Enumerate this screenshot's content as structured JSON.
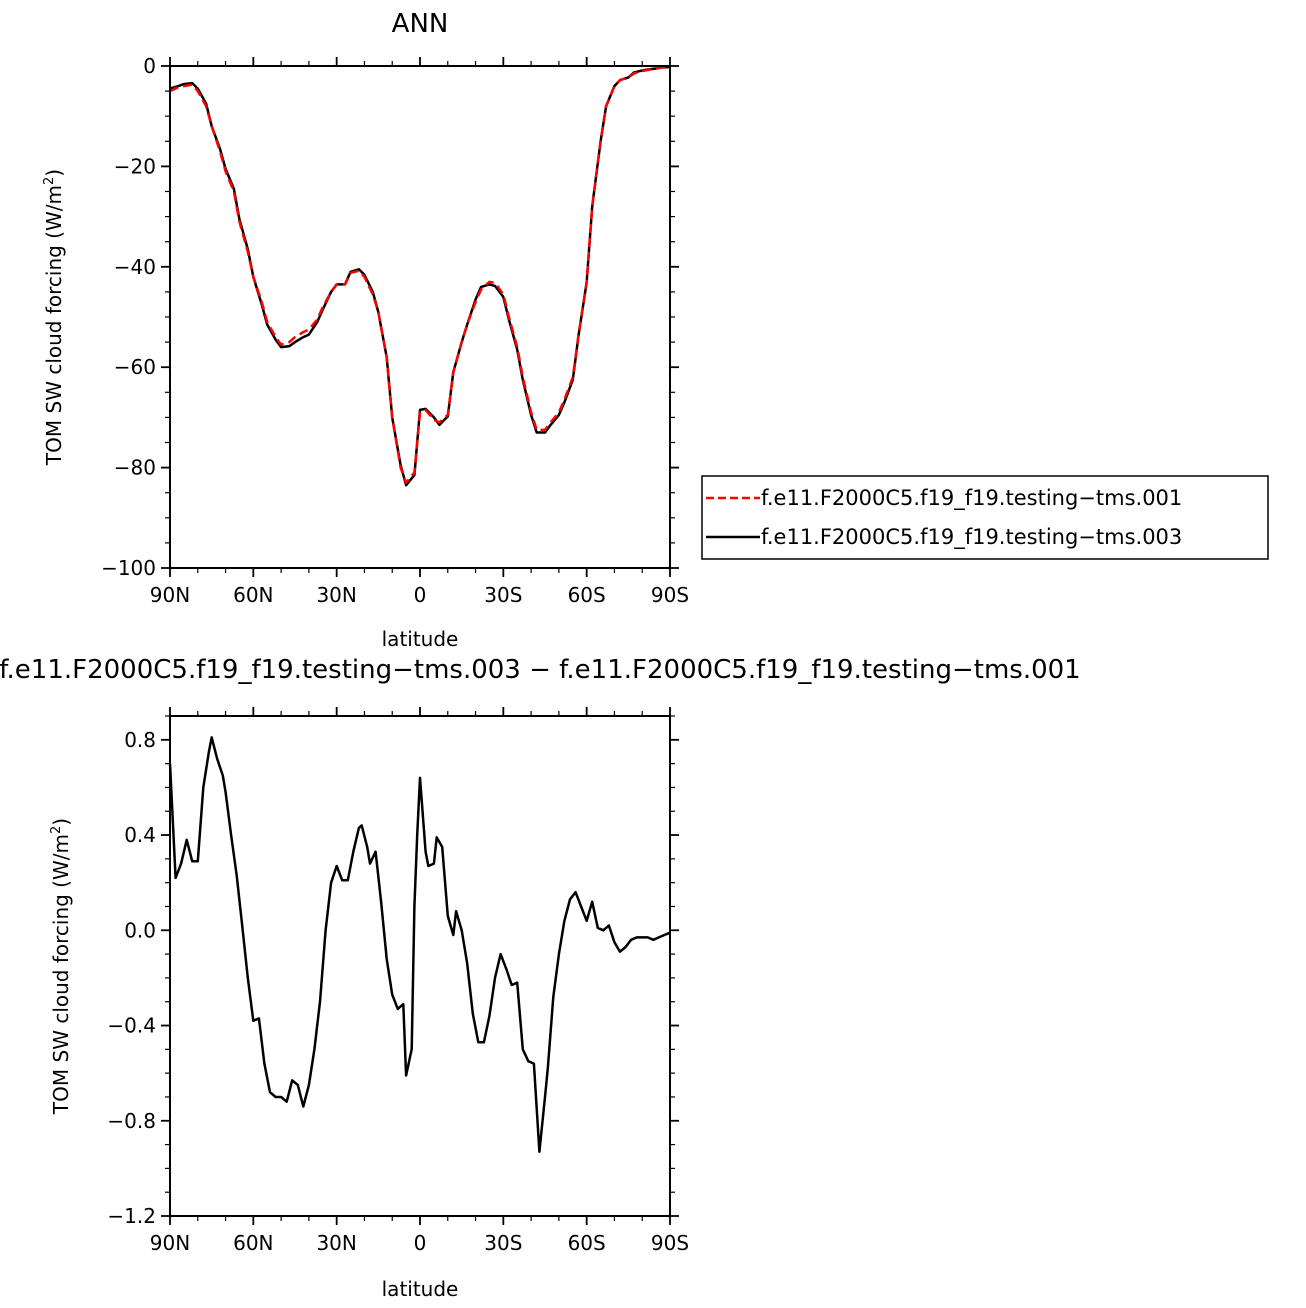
{
  "chart_data": [
    {
      "type": "line",
      "title": "ANN",
      "xlabel": "latitude",
      "ylabel_text": "TOM SW cloud forcing (W/m",
      "ylabel_sup": "2",
      "ylabel_close": ")",
      "x_tick_labels": [
        "90N",
        "60N",
        "30N",
        "0",
        "30S",
        "60S",
        "90S"
      ],
      "x_tick_values": [
        90,
        60,
        30,
        0,
        -30,
        -60,
        -90
      ],
      "xlim": [
        90,
        -90
      ],
      "y_tick_labels": [
        "0",
        "−20",
        "−40",
        "−60",
        "−80",
        "−100"
      ],
      "y_tick_values": [
        0,
        -20,
        -40,
        -60,
        -80,
        -100
      ],
      "ylim": [
        -100,
        0
      ],
      "legend_position": "right",
      "series": [
        {
          "name": "f.e11.F2000C5.f19_f19.testing−tms.001",
          "color": "#ff0000",
          "dash": "dashed",
          "x": [
            90,
            87,
            85,
            82,
            80,
            77,
            75,
            72,
            70,
            67,
            65,
            62,
            60,
            57,
            55,
            52,
            50,
            47,
            45,
            42,
            40,
            37,
            35,
            32,
            30,
            27,
            25,
            22,
            20,
            17,
            15,
            12,
            10,
            7,
            5,
            2,
            0,
            -2,
            -5,
            -7,
            -10,
            -12,
            -15,
            -17,
            -20,
            -22,
            -25,
            -27,
            -30,
            -32,
            -35,
            -37,
            -40,
            -42,
            -45,
            -47,
            -50,
            -52,
            -55,
            -57,
            -60,
            -62,
            -65,
            -67,
            -70,
            -72,
            -75,
            -77,
            -80,
            -82,
            -85,
            -87,
            -90
          ],
          "y": [
            -5,
            -4.2,
            -4,
            -3.7,
            -5,
            -8,
            -12,
            -17,
            -21,
            -25,
            -31,
            -37,
            -42,
            -47,
            -51,
            -54,
            -55.5,
            -55,
            -54,
            -53,
            -52.5,
            -50.5,
            -48,
            -45,
            -43.5,
            -43.5,
            -41.2,
            -40.8,
            -42,
            -45.5,
            -49,
            -58,
            -70,
            -80,
            -83,
            -81,
            -69,
            -68.5,
            -70.5,
            -71,
            -69.5,
            -61,
            -55,
            -51.5,
            -47,
            -44.5,
            -43,
            -43.2,
            -45.5,
            -50,
            -56,
            -62,
            -69,
            -72.5,
            -72.5,
            -71,
            -69,
            -66.5,
            -62,
            -54,
            -43,
            -28,
            -15,
            -8,
            -4,
            -2.8,
            -2.3,
            -1.5,
            -1,
            -0.8,
            -0.5,
            -0.3,
            -0.2
          ]
        },
        {
          "name": "f.e11.F2000C5.f19_f19.testing−tms.003",
          "color": "#000000",
          "dash": "solid",
          "x": [
            90,
            87,
            85,
            82,
            80,
            77,
            75,
            72,
            70,
            67,
            65,
            62,
            60,
            57,
            55,
            52,
            50,
            47,
            45,
            42,
            40,
            37,
            35,
            32,
            30,
            27,
            25,
            22,
            20,
            17,
            15,
            12,
            10,
            7,
            5,
            2,
            0,
            -2,
            -5,
            -7,
            -10,
            -12,
            -15,
            -17,
            -20,
            -22,
            -25,
            -27,
            -30,
            -32,
            -35,
            -37,
            -40,
            -42,
            -45,
            -47,
            -50,
            -52,
            -55,
            -57,
            -60,
            -62,
            -65,
            -67,
            -70,
            -72,
            -75,
            -77,
            -80,
            -82,
            -85,
            -87,
            -90
          ],
          "y": [
            -4.5,
            -4,
            -3.6,
            -3.4,
            -4.5,
            -7.5,
            -12,
            -16.5,
            -20.5,
            -24.5,
            -30.5,
            -36.5,
            -42,
            -47.5,
            -51.5,
            -54.5,
            -56,
            -55.8,
            -55,
            -54,
            -53.5,
            -51,
            -48.5,
            -45,
            -43.5,
            -43.5,
            -41,
            -40.5,
            -41.6,
            -45,
            -49,
            -58,
            -70,
            -79.5,
            -83.5,
            -81.5,
            -68.5,
            -68.3,
            -70,
            -71.5,
            -69.8,
            -61,
            -55,
            -51.5,
            -46.5,
            -44,
            -43.5,
            -43.8,
            -46,
            -50.5,
            -56.5,
            -62.5,
            -69.5,
            -73,
            -73,
            -71.5,
            -69.5,
            -67,
            -62.5,
            -54,
            -43,
            -28,
            -15,
            -8,
            -4,
            -2.8,
            -2.3,
            -1.3,
            -0.9,
            -0.7,
            -0.5,
            -0.3,
            -0.2
          ]
        }
      ]
    },
    {
      "type": "line",
      "title": "f.e11.F2000C5.f19_f19.testing−tms.003 − f.e11.F2000C5.f19_f19.testing−tms.001",
      "xlabel": "latitude",
      "ylabel_text": "TOM SW cloud forcing (W/m",
      "ylabel_sup": "2",
      "ylabel_close": ")",
      "x_tick_labels": [
        "90N",
        "60N",
        "30N",
        "0",
        "30S",
        "60S",
        "90S"
      ],
      "x_tick_values": [
        90,
        60,
        30,
        0,
        -30,
        -60,
        -90
      ],
      "xlim": [
        90,
        -90
      ],
      "y_tick_labels": [
        "0.8",
        "0.4",
        "0.0",
        "−0.4",
        "−0.8",
        "−1.2"
      ],
      "y_tick_values": [
        0.8,
        0.4,
        0.0,
        -0.4,
        -0.8,
        -1.2
      ],
      "ylim": [
        -1.2,
        0.9
      ],
      "series": [
        {
          "color": "#000000",
          "dash": "solid",
          "x": [
            90,
            88,
            86,
            84,
            82,
            80,
            78,
            76,
            75,
            73,
            71,
            70,
            68,
            66,
            64,
            62,
            60,
            58,
            56,
            54,
            52,
            50,
            48,
            46,
            44,
            42,
            40,
            38,
            36,
            34,
            32,
            30,
            28,
            26,
            24,
            22,
            21,
            19,
            18,
            16,
            14,
            12,
            10,
            8,
            6,
            5,
            3,
            2,
            1,
            0,
            -2,
            -3,
            -5,
            -6,
            -8,
            -10,
            -12,
            -13,
            -15,
            -17,
            -19,
            -21,
            -23,
            -25,
            -27,
            -29,
            -31,
            -33,
            -35,
            -37,
            -39,
            -41,
            -43,
            -45,
            -46,
            -48,
            -50,
            -52,
            -54,
            -56,
            -58,
            -60,
            -62,
            -64,
            -66,
            -68,
            -70,
            -72,
            -74,
            -76,
            -78,
            -80,
            -82,
            -84,
            -86,
            -88,
            -90
          ],
          "y": [
            0.7,
            0.22,
            0.28,
            0.38,
            0.29,
            0.29,
            0.6,
            0.75,
            0.81,
            0.72,
            0.65,
            0.58,
            0.4,
            0.23,
            0.02,
            -0.2,
            -0.38,
            -0.37,
            -0.56,
            -0.68,
            -0.7,
            -0.7,
            -0.72,
            -0.63,
            -0.65,
            -0.74,
            -0.65,
            -0.5,
            -0.3,
            0.0,
            0.2,
            0.27,
            0.21,
            0.21,
            0.33,
            0.43,
            0.44,
            0.35,
            0.28,
            0.33,
            0.12,
            -0.12,
            -0.27,
            -0.33,
            -0.31,
            -0.61,
            -0.5,
            0.1,
            0.4,
            0.64,
            0.33,
            0.27,
            0.28,
            0.39,
            0.35,
            0.06,
            -0.02,
            0.08,
            0.0,
            -0.14,
            -0.35,
            -0.47,
            -0.47,
            -0.36,
            -0.2,
            -0.1,
            -0.16,
            -0.23,
            -0.22,
            -0.5,
            -0.55,
            -0.56,
            -0.93,
            -0.7,
            -0.58,
            -0.28,
            -0.1,
            0.04,
            0.13,
            0.16,
            0.1,
            0.04,
            0.12,
            0.01,
            0.0,
            0.02,
            -0.05,
            -0.09,
            -0.07,
            -0.04,
            -0.03,
            -0.03,
            -0.03,
            -0.04,
            -0.03,
            -0.02,
            -0.01
          ]
        }
      ]
    }
  ]
}
